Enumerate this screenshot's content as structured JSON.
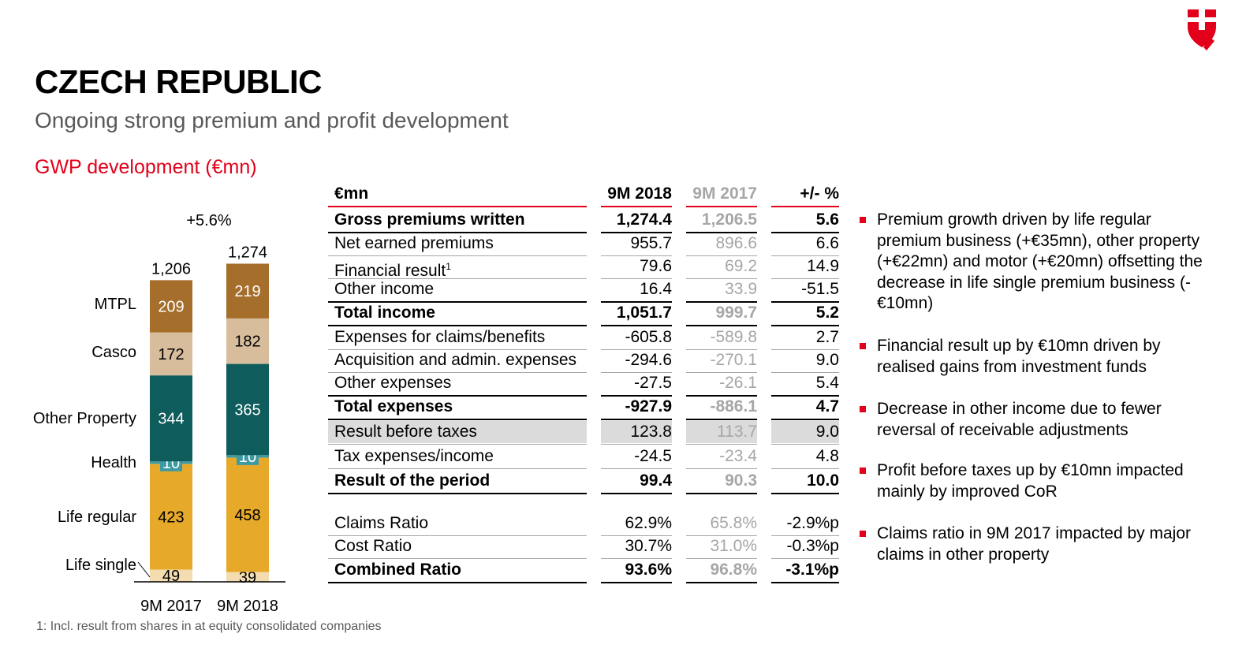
{
  "header": {
    "title": "CZECH REPUBLIC",
    "subtitle": "Ongoing strong premium and profit development",
    "logo_color": "#e2001a"
  },
  "chart_heading": "GWP development (€mn)",
  "chart_data": {
    "type": "bar",
    "stacked": true,
    "categories": [
      "9M 2017",
      "9M 2018"
    ],
    "totals": [
      1206,
      1274
    ],
    "total_labels": [
      "1,206",
      "1,274"
    ],
    "growth_label": "+5.6%",
    "series": [
      {
        "name": "Life single",
        "values": [
          49,
          39
        ],
        "color": "#f3ddb0",
        "text_color": "#000000"
      },
      {
        "name": "Life regular",
        "values": [
          423,
          458
        ],
        "color": "#e6a92a",
        "text_color": "#000000"
      },
      {
        "name": "Health",
        "values": [
          10,
          10
        ],
        "color": "#3d9aa3",
        "text_color": "#ffffff"
      },
      {
        "name": "Other Property",
        "values": [
          344,
          365
        ],
        "color": "#0e5c5b",
        "text_color": "#ffffff"
      },
      {
        "name": "Casco",
        "values": [
          172,
          182
        ],
        "color": "#d8bd9d",
        "text_color": "#000000"
      },
      {
        "name": "MTPL",
        "values": [
          209,
          219
        ],
        "color": "#a56e2b",
        "text_color": "#ffffff"
      }
    ]
  },
  "table": {
    "headers": {
      "label": "€mn",
      "col1": "9M 2018",
      "col2": "9M 2017",
      "col3": "+/- %"
    },
    "rows": [
      {
        "label": "Gross premiums written",
        "v18": "1,274.4",
        "v17": "1,206.5",
        "pct": "5.6",
        "bold": true
      },
      {
        "label": "Net earned premiums",
        "v18": "955.7",
        "v17": "896.6",
        "pct": "6.6"
      },
      {
        "label": "Financial result",
        "sup": "1",
        "v18": "79.6",
        "v17": "69.2",
        "pct": "14.9"
      },
      {
        "label": "Other income",
        "v18": "16.4",
        "v17": "33.9",
        "pct": "-51.5"
      },
      {
        "label": "Total income",
        "v18": "1,051.7",
        "v17": "999.7",
        "pct": "5.2",
        "bold": true
      },
      {
        "label": "Expenses for claims/benefits",
        "v18": "-605.8",
        "v17": "-589.8",
        "pct": "2.7"
      },
      {
        "label": "Acquisition and admin. expenses",
        "v18": "-294.6",
        "v17": "-270.1",
        "pct": "9.0"
      },
      {
        "label": "Other expenses",
        "v18": "-27.5",
        "v17": "-26.1",
        "pct": "5.4"
      },
      {
        "label": "Total expenses",
        "v18": "-927.9",
        "v17": "-886.1",
        "pct": "4.7",
        "bold": true
      },
      {
        "label": "Result before taxes",
        "v18": "123.8",
        "v17": "113.7",
        "pct": "9.0",
        "shaded": true
      },
      {
        "label": "Tax expenses/income",
        "v18": "-24.5",
        "v17": "-23.4",
        "pct": "4.8"
      },
      {
        "label": "Result of the period",
        "v18": "99.4",
        "v17": "90.3",
        "pct": "10.0",
        "bold": true
      },
      {
        "label": "Claims Ratio",
        "v18": "62.9%",
        "v17": "65.8%",
        "pct": "-2.9%p"
      },
      {
        "label": "Cost Ratio",
        "v18": "30.7%",
        "v17": "31.0%",
        "pct": "-0.3%p"
      },
      {
        "label": "Combined Ratio",
        "v18": "93.6%",
        "v17": "96.8%",
        "pct": "-3.1%p",
        "bold": true
      }
    ]
  },
  "bullets": [
    "Premium growth driven by life regular premium business (+€35mn), other property (+€22mn) and motor (+€20mn) offsetting the decrease in life single premium business (-€10mn)",
    "Financial result up by €10mn driven by realised gains from investment funds",
    "Decrease in other income due to fewer reversal of receivable adjustments",
    "Profit before taxes up by €10mn impacted mainly by improved CoR",
    "Claims ratio in 9M 2017 impacted by major claims in other property"
  ],
  "footnote": "1: Incl. result from shares in at equity consolidated companies"
}
